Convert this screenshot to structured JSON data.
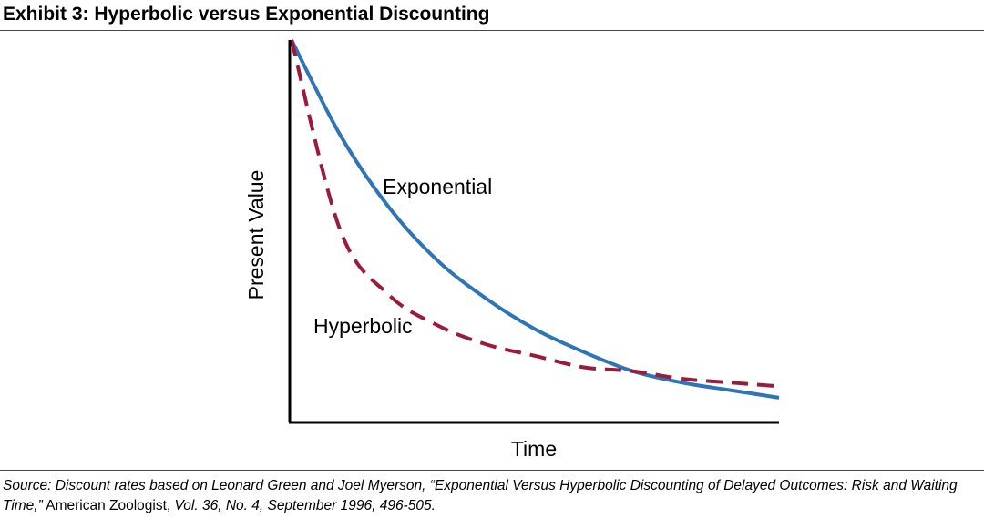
{
  "exhibit": {
    "title": "Exhibit 3: Hyperbolic versus Exponential Discounting"
  },
  "chart_data": {
    "type": "line",
    "xlabel": "Time",
    "ylabel": "Present Value",
    "grid": false,
    "axis_ticks": false,
    "x": [
      0,
      1,
      2,
      3,
      4,
      5,
      6,
      7,
      8,
      9,
      10
    ],
    "series": [
      {
        "name": "Exponential",
        "style": "solid",
        "color": "#2e75b6",
        "values": [
          1.0,
          0.75,
          0.56,
          0.42,
          0.32,
          0.24,
          0.18,
          0.13,
          0.1,
          0.08,
          0.06
        ]
      },
      {
        "name": "Hyperbolic",
        "style": "dashed",
        "color": "#9b1b3b",
        "values": [
          1.0,
          0.5,
          0.33,
          0.25,
          0.2,
          0.17,
          0.14,
          0.13,
          0.11,
          0.1,
          0.09
        ]
      }
    ],
    "xlim": [
      0,
      10
    ],
    "ylim": [
      0,
      1
    ]
  },
  "source": {
    "prefix": "Source: Discount rates based on Leonard Green and Joel Myerson, “Exponential Versus Hyperbolic Discounting of Delayed Outcomes: Risk and Waiting Time,”",
    "journal": " American Zoologist,",
    "suffix": " Vol. 36, No. 4, September 1996, 496-505."
  }
}
